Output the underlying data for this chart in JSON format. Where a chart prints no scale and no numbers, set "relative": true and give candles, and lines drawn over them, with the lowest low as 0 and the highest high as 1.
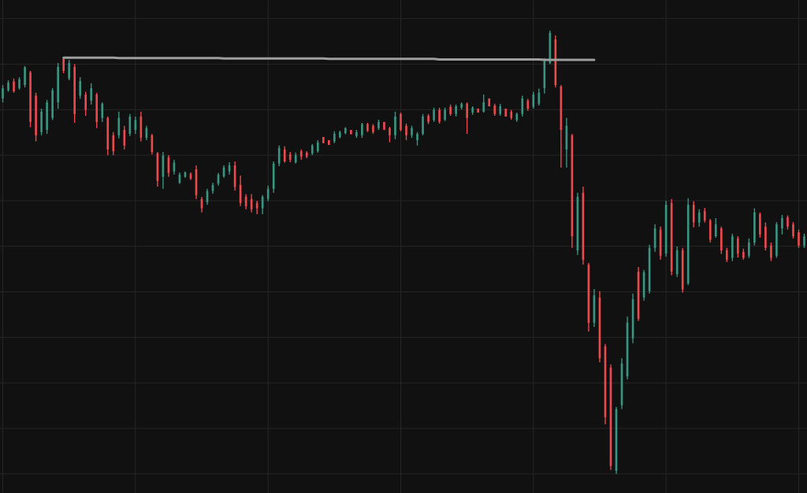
{
  "chart_data": {
    "type": "candlestick",
    "relative": true,
    "grid": true,
    "categories": [
      null,
      null,
      null,
      null,
      null,
      null,
      null,
      null,
      null,
      null,
      null,
      null,
      null,
      null,
      null,
      null,
      null,
      null,
      null,
      null,
      null,
      null,
      null,
      null,
      null,
      null,
      null,
      null,
      null,
      null,
      null,
      null,
      null,
      null,
      null,
      null,
      null,
      null,
      null,
      null,
      null,
      null,
      null,
      null,
      null,
      null,
      null,
      null,
      null,
      null,
      null,
      null,
      null,
      null,
      null,
      null,
      null,
      null,
      null,
      null,
      null,
      null,
      null,
      null,
      null,
      null,
      null,
      null,
      null,
      null,
      null,
      null,
      null,
      null,
      null,
      null,
      null,
      null,
      null,
      null,
      null,
      null,
      null,
      null,
      null,
      null,
      null,
      null,
      null,
      null,
      null,
      null,
      null,
      null,
      null,
      null,
      null,
      null,
      null,
      null,
      null,
      null,
      null,
      null,
      null,
      null,
      null,
      null,
      null,
      null,
      null,
      null,
      null,
      null,
      null,
      null,
      null,
      null,
      null,
      null,
      null,
      null,
      null,
      null,
      null,
      null,
      null,
      null,
      null,
      null,
      null,
      null,
      null,
      null,
      null,
      null,
      null,
      null,
      null,
      null,
      null,
      null,
      null,
      null,
      null,
      null
    ],
    "series": [
      {
        "ohlc": [
          [
            0.847,
            0.877,
            0.838,
            0.87
          ],
          [
            0.865,
            0.888,
            0.862,
            0.883
          ],
          [
            0.885,
            0.892,
            0.86,
            0.863
          ],
          [
            0.87,
            0.895,
            0.867,
            0.89
          ],
          [
            0.877,
            0.92,
            0.872,
            0.917
          ],
          [
            0.906,
            0.909,
            0.782,
            0.794
          ],
          [
            0.853,
            0.86,
            0.75,
            0.764
          ],
          [
            0.771,
            0.824,
            0.764,
            0.817
          ],
          [
            0.776,
            0.844,
            0.767,
            0.838
          ],
          [
            0.803,
            0.87,
            0.798,
            0.865
          ],
          [
            0.838,
            0.927,
            0.824,
            0.918
          ],
          [
            0.936,
            0.941,
            0.904,
            0.909
          ],
          [
            0.892,
            0.934,
            0.888,
            0.927
          ],
          [
            0.918,
            0.924,
            0.792,
            0.812
          ],
          [
            0.853,
            0.895,
            0.846,
            0.886
          ],
          [
            0.856,
            0.862,
            0.808,
            0.821
          ],
          [
            0.842,
            0.881,
            0.833,
            0.87
          ],
          [
            0.856,
            0.86,
            0.78,
            0.794
          ],
          [
            0.803,
            0.838,
            0.794,
            0.835
          ],
          [
            0.803,
            0.806,
            0.719,
            0.732
          ],
          [
            0.764,
            0.771,
            0.719,
            0.728
          ],
          [
            0.764,
            0.817,
            0.757,
            0.803
          ],
          [
            0.776,
            0.785,
            0.732,
            0.741
          ],
          [
            0.767,
            0.812,
            0.762,
            0.806
          ],
          [
            0.776,
            0.806,
            0.767,
            0.798
          ],
          [
            0.806,
            0.817,
            0.75,
            0.758
          ],
          [
            0.758,
            0.785,
            0.753,
            0.78
          ],
          [
            0.764,
            0.767,
            0.721,
            0.726
          ],
          [
            0.723,
            0.726,
            0.648,
            0.661
          ],
          [
            0.67,
            0.726,
            0.643,
            0.718
          ],
          [
            0.714,
            0.719,
            0.67,
            0.679
          ],
          [
            0.682,
            0.709,
            0.675,
            0.702
          ],
          [
            0.657,
            0.68,
            0.654,
            0.675
          ],
          [
            0.67,
            0.682,
            0.668,
            0.68
          ],
          [
            0.677,
            0.68,
            0.663,
            0.666
          ],
          [
            0.687,
            0.696,
            0.62,
            0.629
          ],
          [
            0.62,
            0.625,
            0.59,
            0.599
          ],
          [
            0.613,
            0.643,
            0.607,
            0.638
          ],
          [
            0.638,
            0.657,
            0.632,
            0.652
          ],
          [
            0.655,
            0.679,
            0.65,
            0.675
          ],
          [
            0.671,
            0.696,
            0.668,
            0.691
          ],
          [
            0.682,
            0.703,
            0.675,
            0.696
          ],
          [
            0.696,
            0.705,
            0.639,
            0.647
          ],
          [
            0.652,
            0.673,
            0.604,
            0.611
          ],
          [
            0.625,
            0.631,
            0.597,
            0.604
          ],
          [
            0.62,
            0.631,
            0.59,
            0.597
          ],
          [
            0.611,
            0.616,
            0.586,
            0.599
          ],
          [
            0.599,
            0.629,
            0.586,
            0.625
          ],
          [
            0.62,
            0.65,
            0.615,
            0.643
          ],
          [
            0.643,
            0.705,
            0.634,
            0.7
          ],
          [
            0.7,
            0.741,
            0.694,
            0.735
          ],
          [
            0.732,
            0.739,
            0.702,
            0.705
          ],
          [
            0.721,
            0.726,
            0.703,
            0.709
          ],
          [
            0.703,
            0.725,
            0.7,
            0.719
          ],
          [
            0.728,
            0.732,
            0.709,
            0.716
          ],
          [
            0.725,
            0.728,
            0.712,
            0.716
          ],
          [
            0.723,
            0.744,
            0.719,
            0.741
          ],
          [
            0.728,
            0.753,
            0.725,
            0.748
          ],
          [
            0.76,
            0.76,
            0.746,
            0.746
          ],
          [
            0.753,
            0.753,
            0.742,
            0.742
          ],
          [
            0.75,
            0.773,
            0.746,
            0.767
          ],
          [
            0.76,
            0.774,
            0.757,
            0.771
          ],
          [
            0.769,
            0.782,
            0.766,
            0.78
          ],
          [
            0.776,
            0.776,
            0.766,
            0.766
          ],
          [
            0.762,
            0.776,
            0.758,
            0.771
          ],
          [
            0.764,
            0.792,
            0.758,
            0.789
          ],
          [
            0.789,
            0.792,
            0.771,
            0.774
          ],
          [
            0.785,
            0.789,
            0.767,
            0.771
          ],
          [
            0.78,
            0.799,
            0.776,
            0.794
          ],
          [
            0.794,
            0.794,
            0.776,
            0.776
          ],
          [
            0.78,
            0.783,
            0.748,
            0.764
          ],
          [
            0.764,
            0.817,
            0.755,
            0.806
          ],
          [
            0.812,
            0.815,
            0.773,
            0.776
          ],
          [
            0.785,
            0.79,
            0.753,
            0.764
          ],
          [
            0.764,
            0.785,
            0.758,
            0.78
          ],
          [
            0.753,
            0.771,
            0.741,
            0.767
          ],
          [
            0.767,
            0.812,
            0.764,
            0.806
          ],
          [
            0.808,
            0.812,
            0.789,
            0.794
          ],
          [
            0.798,
            0.826,
            0.794,
            0.821
          ],
          [
            0.821,
            0.826,
            0.79,
            0.794
          ],
          [
            0.799,
            0.826,
            0.796,
            0.821
          ],
          [
            0.828,
            0.833,
            0.808,
            0.812
          ],
          [
            0.812,
            0.833,
            0.806,
            0.829
          ],
          [
            0.826,
            0.838,
            0.822,
            0.835
          ],
          [
            0.835,
            0.838,
            0.767,
            0.803
          ],
          [
            0.815,
            0.829,
            0.81,
            0.826
          ],
          [
            0.824,
            0.824,
            0.815,
            0.815
          ],
          [
            0.817,
            0.856,
            0.815,
            0.838
          ],
          [
            0.847,
            0.847,
            0.829,
            0.829
          ],
          [
            0.831,
            0.835,
            0.808,
            0.812
          ],
          [
            0.812,
            0.835,
            0.808,
            0.829
          ],
          [
            0.824,
            0.824,
            0.806,
            0.806
          ],
          [
            0.817,
            0.821,
            0.799,
            0.803
          ],
          [
            0.798,
            0.815,
            0.794,
            0.812
          ],
          [
            0.812,
            0.853,
            0.806,
            0.847
          ],
          [
            0.842,
            0.846,
            0.819,
            0.824
          ],
          [
            0.828,
            0.862,
            0.824,
            0.856
          ],
          [
            0.835,
            0.869,
            0.831,
            0.86
          ],
          [
            0.87,
            0.938,
            0.858,
            0.931
          ],
          [
            0.927,
            1.0,
            0.924,
            0.995
          ],
          [
            0.98,
            0.989,
            0.872,
            0.877
          ],
          [
            0.874,
            0.877,
            0.691,
            0.776
          ],
          [
            0.732,
            0.803,
            0.691,
            0.785
          ],
          [
            0.764,
            0.767,
            0.51,
            0.536
          ],
          [
            0.504,
            0.634,
            0.494,
            0.625
          ],
          [
            0.634,
            0.648,
            0.472,
            0.483
          ],
          [
            0.472,
            0.476,
            0.321,
            0.341
          ],
          [
            0.341,
            0.417,
            0.332,
            0.403
          ],
          [
            0.398,
            0.412,
            0.252,
            0.261
          ],
          [
            0.288,
            0.293,
            0.112,
            0.128
          ],
          [
            0.24,
            0.247,
            0.009,
            0.018
          ],
          [
            0.007,
            0.151,
            0,
            0.146
          ],
          [
            0.155,
            0.261,
            0.146,
            0.249
          ],
          [
            0.22,
            0.355,
            0.213,
            0.341
          ],
          [
            0.306,
            0.407,
            0.295,
            0.394
          ],
          [
            0.456,
            0.467,
            0.345,
            0.35
          ],
          [
            0.398,
            0.46,
            0.391,
            0.455
          ],
          [
            0.412,
            0.517,
            0.407,
            0.51
          ],
          [
            0.51,
            0.563,
            0.501,
            0.554
          ],
          [
            0.551,
            0.558,
            0.483,
            0.492
          ],
          [
            0.497,
            0.616,
            0.49,
            0.607
          ],
          [
            0.611,
            0.62,
            0.448,
            0.456
          ],
          [
            0.451,
            0.513,
            0.444,
            0.504
          ],
          [
            0.504,
            0.51,
            0.409,
            0.416
          ],
          [
            0.43,
            0.622,
            0.426,
            0.607
          ],
          [
            0.607,
            0.615,
            0.556,
            0.567
          ],
          [
            0.567,
            0.597,
            0.558,
            0.59
          ],
          [
            0.593,
            0.6,
            0.567,
            0.572
          ],
          [
            0.572,
            0.575,
            0.522,
            0.528
          ],
          [
            0.536,
            0.577,
            0.533,
            0.563
          ],
          [
            0.554,
            0.558,
            0.496,
            0.504
          ],
          [
            0.504,
            0.51,
            0.478,
            0.483
          ],
          [
            0.487,
            0.542,
            0.48,
            0.536
          ],
          [
            0.531,
            0.536,
            0.488,
            0.497
          ],
          [
            0.501,
            0.508,
            0.483,
            0.487
          ],
          [
            0.492,
            0.531,
            0.487,
            0.522
          ],
          [
            0.522,
            0.599,
            0.515,
            0.59
          ],
          [
            0.586,
            0.59,
            0.533,
            0.54
          ],
          [
            0.558,
            0.567,
            0.504,
            0.51
          ],
          [
            0.515,
            0.522,
            0.48,
            0.487
          ],
          [
            0.492,
            0.568,
            0.487,
            0.563
          ],
          [
            0.554,
            0.584,
            0.54,
            0.577
          ],
          [
            0.579,
            0.583,
            0.551,
            0.558
          ],
          [
            0.563,
            0.568,
            0.531,
            0.536
          ],
          [
            0.545,
            0.551,
            0.51,
            0.515
          ],
          [
            0.515,
            0.542,
            0.51,
            0.536
          ]
        ],
        "colors": [
          "#3b9480",
          "#3b9480",
          "#e84a50",
          "#3b9480",
          "#3b9480",
          "#e84a50",
          "#e84a50",
          "#3b9480",
          "#3b9480",
          "#3b9480",
          "#3b9480",
          "#e84a50",
          "#3b9480",
          "#e84a50",
          "#3b9480",
          "#e84a50",
          "#3b9480",
          "#e84a50",
          "#3b9480",
          "#e84a50",
          "#e84a50",
          "#3b9480",
          "#e84a50",
          "#3b9480",
          "#3b9480",
          "#e84a50",
          "#3b9480",
          "#e84a50",
          "#e84a50",
          "#3b9480",
          "#e84a50",
          "#3b9480",
          "#3b9480",
          "#3b9480",
          "#e84a50",
          "#e84a50",
          "#e84a50",
          "#3b9480",
          "#3b9480",
          "#3b9480",
          "#3b9480",
          "#3b9480",
          "#e84a50",
          "#e84a50",
          "#e84a50",
          "#e84a50",
          "#e84a50",
          "#3b9480",
          "#3b9480",
          "#3b9480",
          "#3b9480",
          "#e84a50",
          "#e84a50",
          "#3b9480",
          "#e84a50",
          "#e84a50",
          "#3b9480",
          "#3b9480",
          "#e84a50",
          "#e84a50",
          "#3b9480",
          "#3b9480",
          "#3b9480",
          "#e84a50",
          "#3b9480",
          "#3b9480",
          "#e84a50",
          "#e84a50",
          "#3b9480",
          "#e84a50",
          "#e84a50",
          "#3b9480",
          "#e84a50",
          "#e84a50",
          "#3b9480",
          "#3b9480",
          "#3b9480",
          "#e84a50",
          "#3b9480",
          "#e84a50",
          "#3b9480",
          "#e84a50",
          "#3b9480",
          "#3b9480",
          "#e84a50",
          "#3b9480",
          "#e84a50",
          "#3b9480",
          "#e84a50",
          "#e84a50",
          "#3b9480",
          "#e84a50",
          "#e84a50",
          "#3b9480",
          "#3b9480",
          "#e84a50",
          "#3b9480",
          "#3b9480",
          "#3b9480",
          "#3b9480",
          "#e84a50",
          "#e84a50",
          "#3b9480",
          "#e84a50",
          "#3b9480",
          "#e84a50",
          "#e84a50",
          "#3b9480",
          "#e84a50",
          "#e84a50",
          "#e84a50",
          "#3b9480",
          "#3b9480",
          "#3b9480",
          "#3b9480",
          "#e84a50",
          "#3b9480",
          "#3b9480",
          "#3b9480",
          "#e84a50",
          "#3b9480",
          "#e84a50",
          "#3b9480",
          "#e84a50",
          "#3b9480",
          "#e84a50",
          "#3b9480",
          "#e84a50",
          "#e84a50",
          "#3b9480",
          "#e84a50",
          "#e84a50",
          "#3b9480",
          "#e84a50",
          "#e84a50",
          "#3b9480",
          "#3b9480",
          "#e84a50",
          "#e84a50",
          "#e84a50",
          "#3b9480",
          "#3b9480",
          "#e84a50",
          "#e84a50",
          "#e84a50",
          "#3b9480"
        ]
      },
      {
        "type": "line",
        "color": "#9e9e9e",
        "values": [
          null,
          null,
          null,
          null,
          null,
          null,
          null,
          null,
          null,
          null,
          null,
          0.939,
          0.939,
          0.939,
          0.939,
          0.939,
          0.939,
          0.939,
          0.939,
          0.939,
          0.939,
          0.938,
          0.938,
          0.938,
          0.938,
          0.938,
          0.938,
          0.938,
          0.938,
          0.938,
          0.938,
          0.938,
          0.938,
          0.938,
          0.938,
          0.938,
          0.938,
          0.938,
          0.938,
          0.938,
          0.937,
          0.937,
          0.937,
          0.937,
          0.937,
          0.937,
          0.937,
          0.937,
          0.937,
          0.937,
          0.937,
          0.937,
          0.937,
          0.937,
          0.937,
          0.937,
          0.937,
          0.937,
          0.937,
          0.936,
          0.936,
          0.936,
          0.936,
          0.936,
          0.936,
          0.936,
          0.936,
          0.936,
          0.936,
          0.936,
          0.936,
          0.936,
          0.936,
          0.936,
          0.936,
          0.936,
          0.936,
          0.936,
          0.936,
          0.935,
          0.935,
          0.935,
          0.935,
          0.935,
          0.935,
          0.935,
          0.935,
          0.935,
          0.935,
          0.935,
          0.935,
          0.935,
          0.935,
          0.935,
          0.935,
          0.935,
          0.935,
          0.935,
          0.934,
          0.934,
          0.934,
          0.934,
          0.934,
          0.934,
          0.934,
          0.934,
          0.934,
          0.934,
          null,
          null,
          null,
          null,
          null,
          null,
          null,
          null,
          null,
          null,
          null,
          null,
          null,
          null,
          null,
          null,
          null,
          null,
          null,
          null,
          null,
          null,
          null,
          null,
          null,
          null,
          null,
          null,
          null,
          null,
          null,
          null,
          null,
          null,
          null,
          null,
          null,
          null
        ]
      }
    ]
  }
}
